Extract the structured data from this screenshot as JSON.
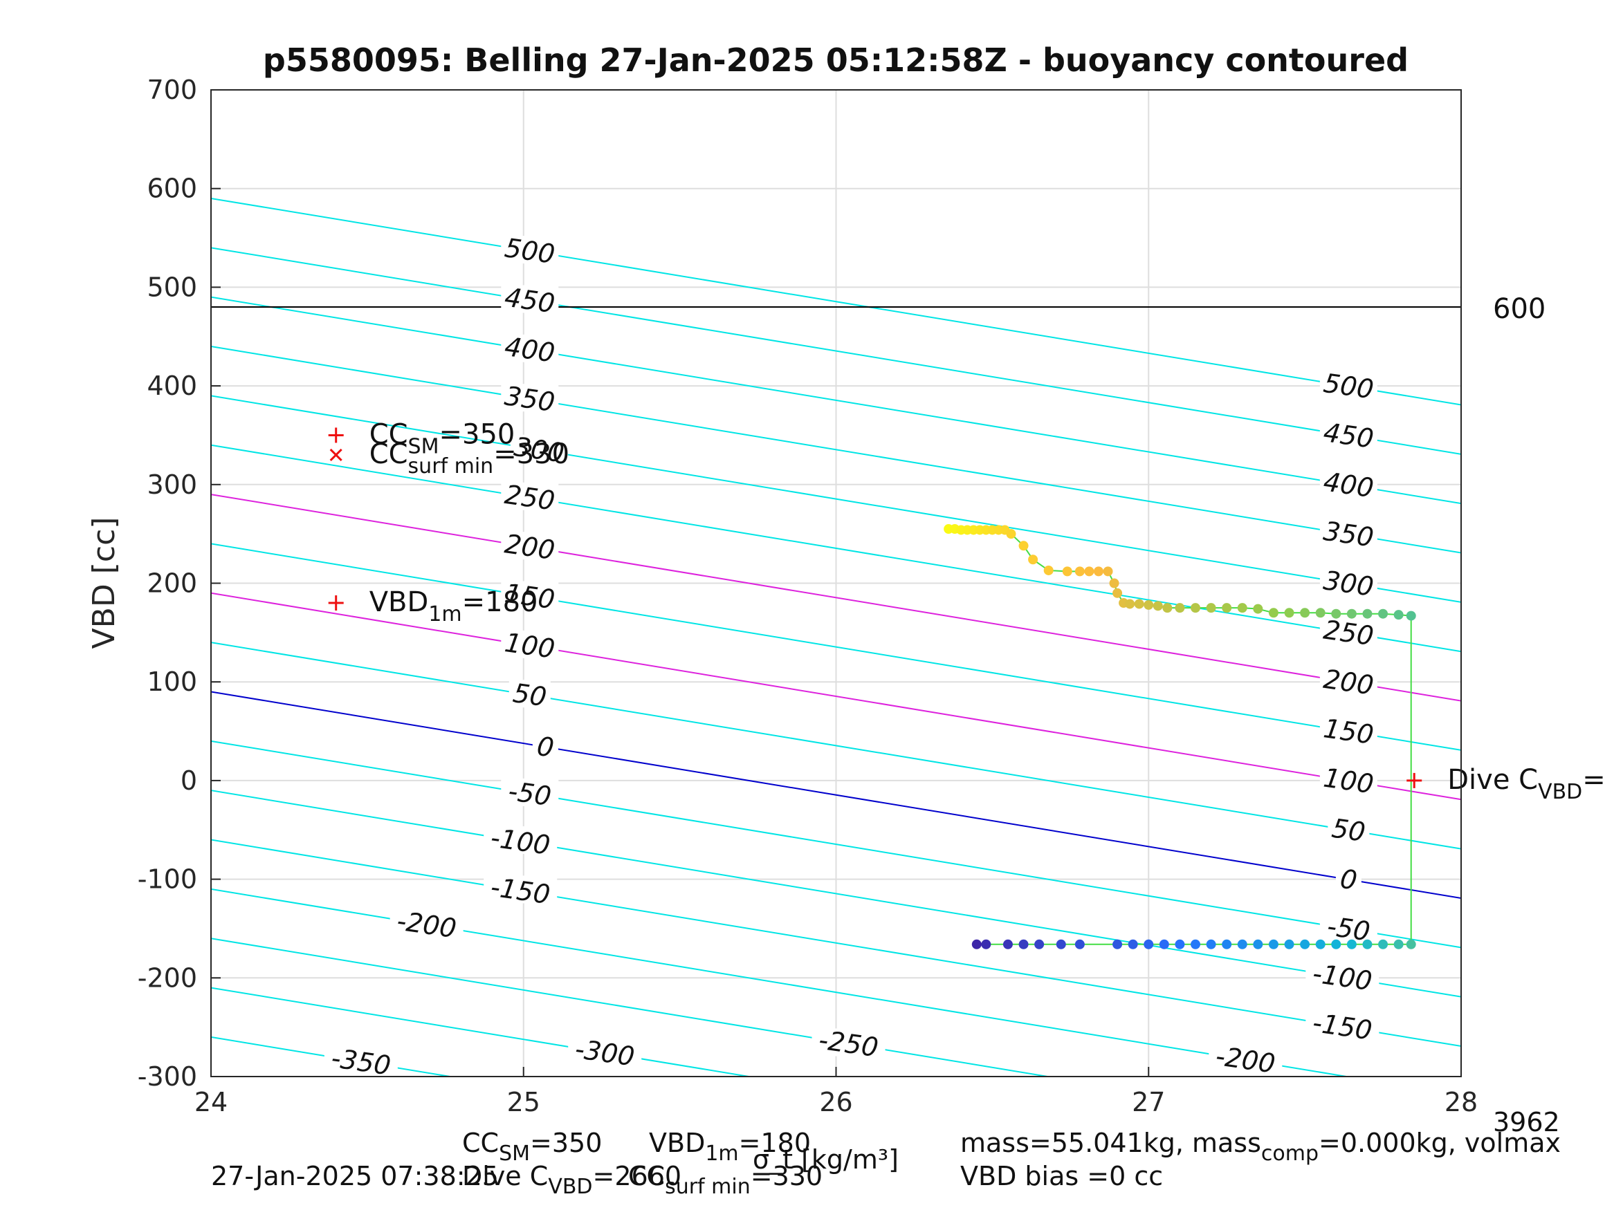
{
  "chart_data": {
    "type": "scatter",
    "title": "p5580095: Belling 27-Jan-2025 05:12:58Z - buoyancy contoured",
    "xlabel": "σ_t [kg/m³]",
    "ylabel": "VBD [cc]",
    "xlim": [
      24,
      28
    ],
    "ylim": [
      -300,
      700
    ],
    "x_ticks": [
      "24",
      "25",
      "26",
      "27",
      "28"
    ],
    "y_ticks": [
      "-300",
      "-200",
      "-100",
      "0",
      "100",
      "200",
      "300",
      "400",
      "500",
      "600",
      "700"
    ],
    "grid": true,
    "volmax_line": {
      "y": 480,
      "label": "600"
    },
    "corner_label": "3962",
    "contour_levels": [
      -350,
      -300,
      -250,
      -200,
      -150,
      -100,
      -50,
      0,
      50,
      100,
      150,
      200,
      250,
      300,
      350,
      400,
      450,
      500
    ],
    "contour_label_text": {
      "-350": "-350",
      "-300": "-300",
      "-250": "-250",
      "-200": "-200",
      "-150": "-150",
      "-100": "-100",
      "-50": "-50",
      "0": "0",
      "50": "50",
      "100": "100",
      "150": "150",
      "200": "200",
      "250": "250",
      "300": "300",
      "350": "350",
      "400": "400",
      "450": "450",
      "500": "500"
    },
    "contour_model": {
      "slope_per_kg_m3": -52.3,
      "vbd_at_sigma24_for_level_0": 90,
      "vbd_step_per_50": 50
    },
    "highlight_contours": [
      {
        "level": 0,
        "color": "#0000cc"
      },
      {
        "level": 100,
        "color": "#dd22dd"
      },
      {
        "level": 200,
        "color": "#dd22dd"
      }
    ],
    "contour_labels": [
      {
        "level": 500,
        "x": 25.02
      },
      {
        "level": 450,
        "x": 25.02
      },
      {
        "level": 400,
        "x": 25.02
      },
      {
        "level": 350,
        "x": 25.02
      },
      {
        "level": 300,
        "x": 25.05
      },
      {
        "level": 250,
        "x": 25.02
      },
      {
        "level": 200,
        "x": 25.02
      },
      {
        "level": 150,
        "x": 25.02
      },
      {
        "level": 100,
        "x": 25.02
      },
      {
        "level": 50,
        "x": 25.02
      },
      {
        "level": 0,
        "x": 25.07
      },
      {
        "level": -50,
        "x": 25.02
      },
      {
        "level": -100,
        "x": 24.99
      },
      {
        "level": -150,
        "x": 24.99
      },
      {
        "level": -200,
        "x": 24.69
      },
      {
        "level": -250,
        "x": 26.04
      },
      {
        "level": -300,
        "x": 25.26
      },
      {
        "level": -350,
        "x": 24.48
      },
      {
        "level": 500,
        "x": 27.64
      },
      {
        "level": 450,
        "x": 27.64
      },
      {
        "level": 400,
        "x": 27.64
      },
      {
        "level": 350,
        "x": 27.64
      },
      {
        "level": 300,
        "x": 27.64
      },
      {
        "level": 250,
        "x": 27.64
      },
      {
        "level": 200,
        "x": 27.64
      },
      {
        "level": 150,
        "x": 27.64
      },
      {
        "level": 100,
        "x": 27.64
      },
      {
        "level": 50,
        "x": 27.64
      },
      {
        "level": 0,
        "x": 27.64
      },
      {
        "level": -50,
        "x": 27.64
      },
      {
        "level": -100,
        "x": 27.62
      },
      {
        "level": -150,
        "x": 27.62
      },
      {
        "level": -200,
        "x": 27.31
      }
    ],
    "markers": [
      {
        "symbol": "+",
        "x": 24.4,
        "y": 350,
        "label": "CC",
        "sub": "SM",
        "value": "=350"
      },
      {
        "symbol": "x",
        "x": 24.4,
        "y": 330,
        "label": "CC",
        "sub": "surf min",
        "value": "=330"
      },
      {
        "symbol": "+",
        "x": 24.4,
        "y": 180,
        "label": "VBD",
        "sub": "1m",
        "value": "=180"
      },
      {
        "symbol": "+",
        "x": 27.85,
        "y": 0,
        "label": "Dive C",
        "sub": "VBD",
        "value": "="
      }
    ],
    "series": [
      {
        "color_scale": "parula",
        "x": [
          26.36,
          26.38,
          26.4,
          26.42,
          26.44,
          26.46,
          26.48,
          26.5,
          26.52,
          26.54,
          26.56,
          26.6,
          26.63,
          26.68,
          26.74,
          26.78,
          26.81,
          26.84,
          26.87,
          26.89,
          26.9,
          26.92,
          26.94,
          26.97,
          27.0,
          27.03,
          27.06,
          27.1,
          27.15,
          27.2,
          27.25,
          27.3,
          27.35,
          27.4,
          27.45,
          27.5,
          27.55,
          27.6,
          27.65,
          27.7,
          27.75,
          27.8,
          27.84
        ],
        "y": [
          255,
          255,
          254,
          254,
          254,
          254,
          254,
          254,
          254,
          254,
          250,
          238,
          224,
          213,
          212,
          212,
          212,
          212,
          212,
          200,
          190,
          180,
          179,
          179,
          178,
          177,
          175,
          175,
          175,
          175,
          175,
          175,
          174,
          170,
          170,
          170,
          170,
          169,
          169,
          169,
          169,
          168,
          167
        ]
      },
      {
        "color_scale": "parula",
        "x": [
          26.45,
          26.48,
          26.55,
          26.6,
          26.65,
          26.72,
          26.78,
          26.9,
          26.95,
          27.0,
          27.05,
          27.1,
          27.15,
          27.2,
          27.25,
          27.3,
          27.35,
          27.4,
          27.45,
          27.5,
          27.55,
          27.6,
          27.65,
          27.7,
          27.75,
          27.8,
          27.84
        ],
        "y": [
          -166,
          -166,
          -166,
          -166,
          -166,
          -166,
          -166,
          -166,
          -166,
          -166,
          -166,
          -166,
          -166,
          -166,
          -166,
          -166,
          -166,
          -166,
          -166,
          -166,
          -166,
          -166,
          -166,
          -166,
          -166,
          -166,
          -166
        ]
      }
    ],
    "connector": {
      "x": 27.84,
      "y_top": 167,
      "y_bottom": -166,
      "color": "#44dd44"
    }
  },
  "footer": {
    "left_date": "27-Jan-2025 07:38:25",
    "cc_sm_label": "CC",
    "cc_sm_sub": "SM",
    "cc_sm_value": "=350",
    "dive_cvbd_label": "Dive C",
    "dive_cvbd_sub": "VBD",
    "dive_cvbd_value": "=2660",
    "vbd1m_label": "VBD",
    "vbd1m_sub": "1m",
    "vbd1m_value": "=180",
    "ccsurf_label": "CC",
    "ccsurf_sub": "surf min",
    "ccsurf_value": "=330",
    "mass_line_a": "mass=55.041kg, mass",
    "mass_comp_sub": "comp",
    "mass_line_b": "=0.000kg, volmax",
    "vbd_bias": "VBD bias =0 cc"
  }
}
